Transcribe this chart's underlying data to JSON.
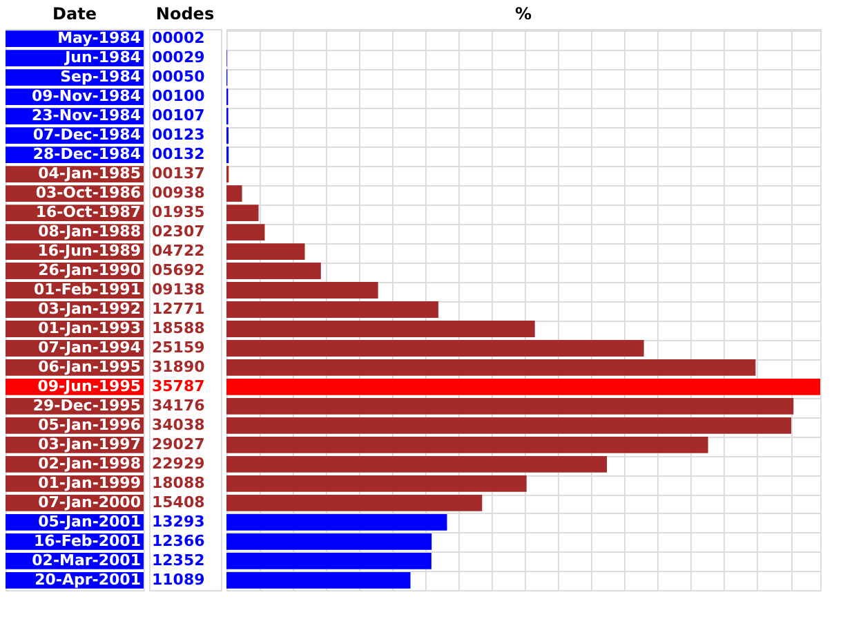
{
  "chart_data": {
    "type": "bar",
    "orientation": "horizontal",
    "ylabel": "Date",
    "xlabel": "%",
    "annotations": [
      "Nodes"
    ],
    "grid": true,
    "categories": [
      "May-1984",
      "Jun-1984",
      "Sep-1984",
      "09-Nov-1984",
      "23-Nov-1984",
      "07-Dec-1984",
      "28-Dec-1984",
      "04-Jan-1985",
      "03-Oct-1986",
      "16-Oct-1987",
      "08-Jan-1988",
      "16-Jun-1989",
      "26-Jan-1990",
      "01-Feb-1991",
      "03-Jan-1992",
      "01-Jan-1993",
      "07-Jan-1994",
      "06-Jan-1995",
      "09-Jun-1995",
      "29-Dec-1995",
      "05-Jan-1996",
      "03-Jan-1997",
      "02-Jan-1998",
      "01-Jan-1999",
      "07-Jan-2000",
      "05-Jan-2001",
      "16-Feb-2001",
      "02-Mar-2001",
      "20-Apr-2001"
    ],
    "values": [
      2,
      29,
      50,
      100,
      107,
      123,
      132,
      137,
      938,
      1935,
      2307,
      4722,
      5692,
      9138,
      12771,
      18588,
      25159,
      31890,
      35787,
      34176,
      34038,
      29027,
      22929,
      18088,
      15408,
      13293,
      12366,
      12352,
      11089
    ],
    "value_labels": [
      "00002",
      "00029",
      "00050",
      "00100",
      "00107",
      "00123",
      "00132",
      "00137",
      "00938",
      "01935",
      "02307",
      "04722",
      "05692",
      "09138",
      "12771",
      "18588",
      "25159",
      "31890",
      "35787",
      "34176",
      "34038",
      "29027",
      "22929",
      "18088",
      "15408",
      "13293",
      "12366",
      "12352",
      "11089"
    ],
    "colors": [
      "#0000ff",
      "#0000ff",
      "#0000ff",
      "#0000ff",
      "#0000ff",
      "#0000ff",
      "#0000ff",
      "#a52a2a",
      "#a52a2a",
      "#a52a2a",
      "#a52a2a",
      "#a52a2a",
      "#a52a2a",
      "#a52a2a",
      "#a52a2a",
      "#a52a2a",
      "#a52a2a",
      "#a52a2a",
      "#ff0000",
      "#a52a2a",
      "#a52a2a",
      "#a52a2a",
      "#a52a2a",
      "#a52a2a",
      "#a52a2a",
      "#0000ff",
      "#0000ff",
      "#0000ff",
      "#0000ff"
    ]
  }
}
